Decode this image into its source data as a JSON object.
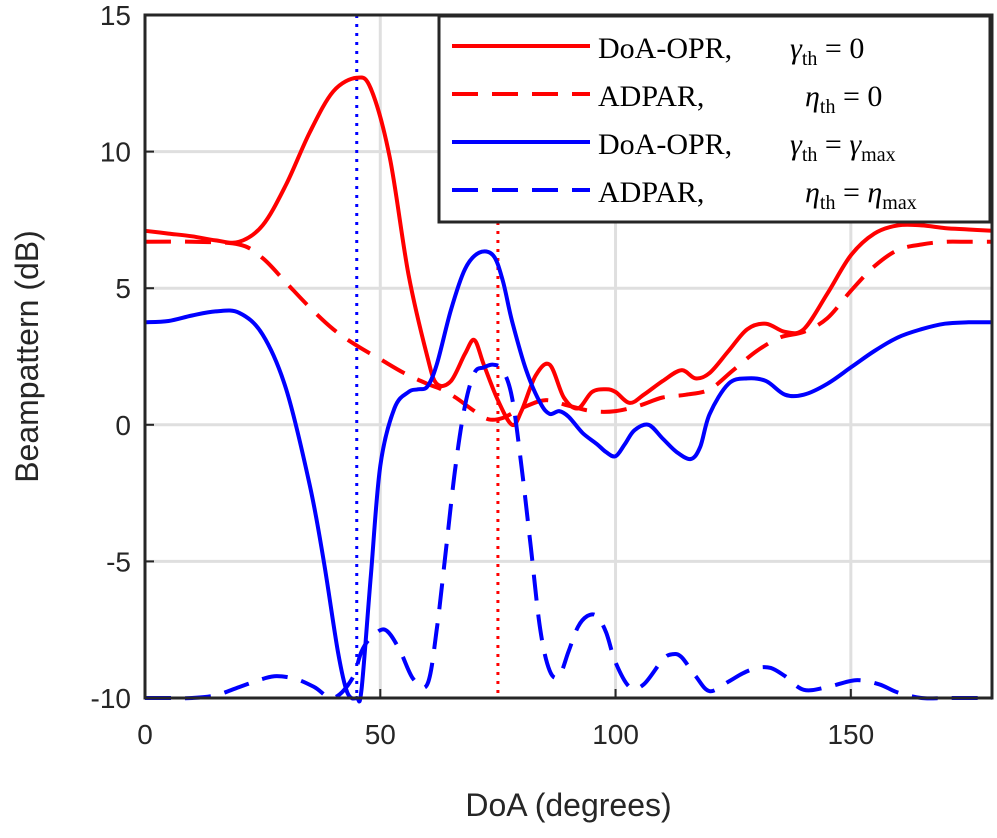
{
  "chart_data": {
    "type": "line",
    "xlabel": "DoA (degrees)",
    "ylabel": "Beampattern (dB)",
    "xlim": [
      0,
      180
    ],
    "ylim": [
      -10,
      15
    ],
    "xticks": [
      0,
      50,
      100,
      150
    ],
    "yticks": [
      15,
      10,
      5,
      0,
      -5,
      -10
    ],
    "xtick_labels": [
      "0",
      "50",
      "100",
      "150"
    ],
    "ytick_labels": [
      "15",
      "10",
      "5",
      "0",
      "-5",
      "-10"
    ],
    "grid": true,
    "legend_position": "top-right",
    "reference_lines": [
      {
        "x": 45,
        "color": "#0000ff",
        "style": "dotted"
      },
      {
        "x": 75,
        "color": "#ff0000",
        "style": "dotted"
      }
    ],
    "legend": [
      {
        "method": "DoA-OPR,",
        "var": "γ",
        "sub": "th",
        "rhs": "0",
        "rhs_sub": ""
      },
      {
        "method": "ADPAR,",
        "var": "η",
        "sub": "th",
        "rhs": "0",
        "rhs_sub": ""
      },
      {
        "method": "DoA-OPR,",
        "var": "γ",
        "sub": "th",
        "rhs": "γ",
        "rhs_sub": "max"
      },
      {
        "method": "ADPAR,",
        "var": "η",
        "sub": "th",
        "rhs": "η",
        "rhs_sub": "max"
      }
    ],
    "series": [
      {
        "color": "#ff0000",
        "dash": "solid",
        "x": [
          0,
          5,
          10,
          15,
          20,
          25,
          30,
          35,
          40,
          45,
          48,
          52,
          56,
          60,
          62,
          65,
          68,
          70,
          72,
          75,
          78,
          80,
          83,
          86,
          89,
          92,
          95,
          98,
          100,
          103,
          106,
          110,
          114,
          117,
          120,
          124,
          128,
          132,
          136,
          140,
          145,
          150,
          155,
          160,
          165,
          170,
          175,
          180
        ],
        "y": [
          7.1,
          7.0,
          6.9,
          6.75,
          6.7,
          7.3,
          8.8,
          10.7,
          12.2,
          12.7,
          12.3,
          9.8,
          5.5,
          2.5,
          1.5,
          1.6,
          2.6,
          3.1,
          2.2,
          0.9,
          0.0,
          0.5,
          1.8,
          2.2,
          1.0,
          0.6,
          1.2,
          1.3,
          1.2,
          0.8,
          1.1,
          1.6,
          2.0,
          1.7,
          1.9,
          2.7,
          3.5,
          3.7,
          3.4,
          3.5,
          4.8,
          6.2,
          7.0,
          7.3,
          7.3,
          7.2,
          7.15,
          7.1
        ]
      },
      {
        "color": "#ff0000",
        "dash": "dashed",
        "x": [
          0,
          10,
          20,
          25,
          30,
          35,
          40,
          45,
          50,
          55,
          60,
          63,
          66,
          70,
          73,
          76,
          80,
          85,
          90,
          95,
          100,
          105,
          110,
          115,
          120,
          125,
          130,
          135,
          140,
          145,
          150,
          155,
          160,
          165,
          170,
          175,
          180
        ],
        "y": [
          6.7,
          6.7,
          6.6,
          6.1,
          5.2,
          4.3,
          3.5,
          2.9,
          2.4,
          1.9,
          1.5,
          1.3,
          1.0,
          0.5,
          0.2,
          0.25,
          0.6,
          0.9,
          0.7,
          0.5,
          0.5,
          0.7,
          1.0,
          1.1,
          1.3,
          2.0,
          2.7,
          3.2,
          3.4,
          3.9,
          4.9,
          5.8,
          6.4,
          6.6,
          6.7,
          6.7,
          6.7
        ]
      },
      {
        "color": "#0000ff",
        "dash": "solid",
        "x": [
          0,
          5,
          10,
          15,
          20,
          25,
          30,
          35,
          38,
          41,
          43,
          45,
          46,
          48,
          50,
          53,
          56,
          58,
          60,
          62,
          65,
          68,
          71,
          74,
          76,
          78,
          81,
          84,
          86,
          88,
          90,
          93,
          96,
          98,
          100,
          102,
          104,
          107,
          110,
          113,
          116,
          118,
          120,
          124,
          128,
          132,
          136,
          140,
          145,
          150,
          155,
          160,
          165,
          170,
          175,
          180
        ],
        "y": [
          3.75,
          3.8,
          4.0,
          4.15,
          4.1,
          3.3,
          1.3,
          -2.2,
          -5.0,
          -8.3,
          -9.8,
          -10.0,
          -9.7,
          -5.5,
          -1.5,
          0.6,
          1.2,
          1.3,
          1.4,
          2.2,
          4.2,
          5.7,
          6.3,
          6.2,
          5.3,
          3.8,
          2.0,
          0.8,
          0.4,
          0.5,
          0.3,
          -0.3,
          -0.7,
          -1.0,
          -1.15,
          -0.7,
          -0.2,
          0.0,
          -0.5,
          -1.0,
          -1.25,
          -0.8,
          0.4,
          1.5,
          1.7,
          1.6,
          1.1,
          1.1,
          1.5,
          2.1,
          2.7,
          3.2,
          3.5,
          3.7,
          3.75,
          3.75
        ]
      },
      {
        "color": "#0000ff",
        "dash": "dashed",
        "x": [
          0,
          5,
          10,
          15,
          20,
          25,
          28,
          32,
          36,
          40,
          44,
          46,
          48,
          51,
          54,
          57,
          60,
          62,
          64,
          66,
          68,
          70,
          72,
          74,
          76,
          78,
          80,
          82,
          84,
          86,
          88,
          90,
          92,
          94,
          96,
          98,
          100,
          103,
          106,
          110,
          112,
          114,
          117,
          120,
          124,
          127,
          130,
          133,
          136,
          140,
          145,
          151,
          156,
          160,
          165,
          170,
          175,
          180
        ],
        "y": [
          -10,
          -10,
          -10,
          -9.9,
          -9.6,
          -9.3,
          -9.2,
          -9.3,
          -9.6,
          -10.0,
          -9.3,
          -8.3,
          -7.8,
          -7.5,
          -8.2,
          -9.3,
          -9.5,
          -7.5,
          -4.5,
          -1.5,
          0.7,
          1.9,
          2.1,
          2.2,
          2.0,
          1.0,
          -1.5,
          -4.5,
          -7.5,
          -9.0,
          -9.2,
          -8.3,
          -7.4,
          -7.0,
          -7.0,
          -7.6,
          -8.7,
          -9.6,
          -9.5,
          -8.6,
          -8.4,
          -8.5,
          -9.2,
          -9.75,
          -9.4,
          -9.1,
          -8.9,
          -8.9,
          -9.2,
          -9.7,
          -9.6,
          -9.35,
          -9.5,
          -9.8,
          -10.0,
          -10.0,
          -10.0,
          -10.0
        ]
      }
    ]
  }
}
